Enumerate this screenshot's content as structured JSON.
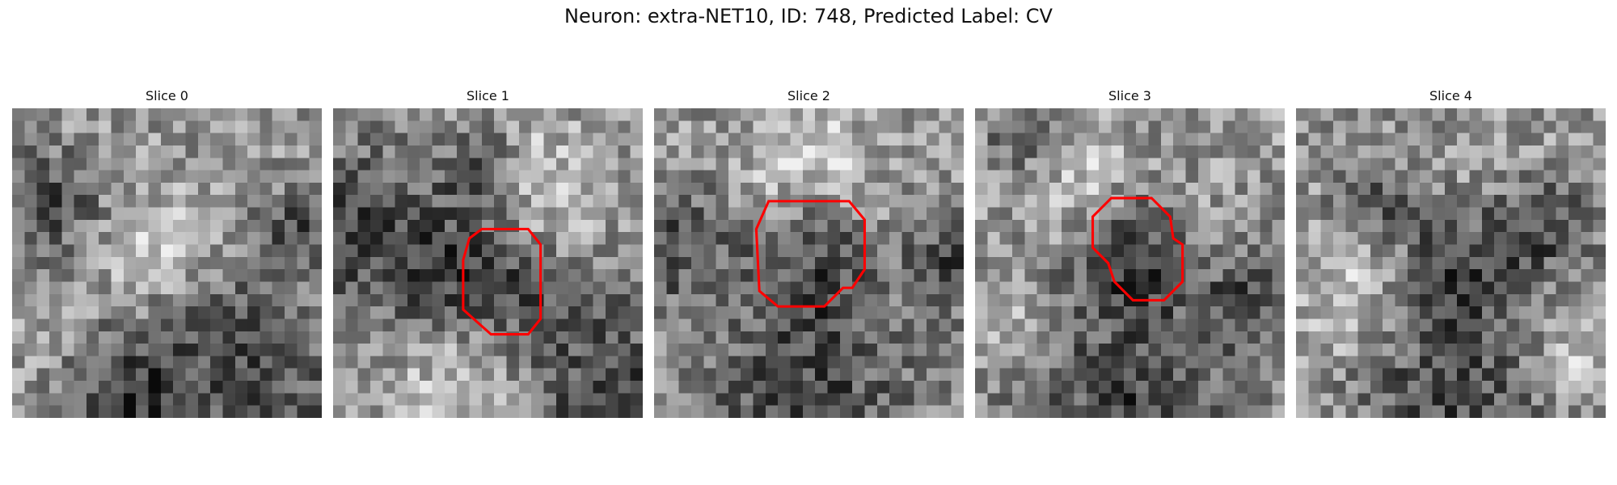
{
  "figure": {
    "title": "Neuron: extra-NET10, ID: 748, Predicted Label: CV",
    "contour_color": "#ff0000",
    "colormap": "gray"
  },
  "slices": [
    {
      "label": "Slice 0",
      "seed": 11,
      "dark_zones": [
        [
          0.75,
          0.9,
          0.55
        ],
        [
          0.35,
          0.95,
          0.3
        ],
        [
          0.1,
          0.3,
          0.25
        ],
        [
          0.9,
          0.4,
          0.2
        ]
      ],
      "bright_zones": [
        [
          0.5,
          0.45,
          0.25
        ]
      ],
      "contour": []
    },
    {
      "label": "Slice 1",
      "seed": 23,
      "dark_zones": [
        [
          0.1,
          0.4,
          0.45
        ],
        [
          0.9,
          0.9,
          0.5
        ],
        [
          0.5,
          0.2,
          0.2
        ],
        [
          0.5,
          0.55,
          0.35
        ]
      ],
      "bright_zones": [
        [
          0.65,
          0.25,
          0.3
        ],
        [
          0.45,
          0.9,
          0.3
        ]
      ],
      "contour": [
        [
          0.44,
          0.42
        ],
        [
          0.48,
          0.39
        ],
        [
          0.63,
          0.39
        ],
        [
          0.67,
          0.44
        ],
        [
          0.67,
          0.68
        ],
        [
          0.63,
          0.73
        ],
        [
          0.51,
          0.73
        ],
        [
          0.42,
          0.65
        ],
        [
          0.42,
          0.49
        ]
      ]
    },
    {
      "label": "Slice 2",
      "seed": 37,
      "dark_zones": [
        [
          0.5,
          0.95,
          0.55
        ],
        [
          0.5,
          0.5,
          0.3
        ],
        [
          0.05,
          0.45,
          0.3
        ],
        [
          0.95,
          0.5,
          0.25
        ]
      ],
      "bright_zones": [
        [
          0.45,
          0.5,
          0.12
        ],
        [
          0.5,
          0.15,
          0.3
        ]
      ],
      "contour": [
        [
          0.37,
          0.3
        ],
        [
          0.49,
          0.3
        ],
        [
          0.63,
          0.3
        ],
        [
          0.68,
          0.36
        ],
        [
          0.68,
          0.52
        ],
        [
          0.64,
          0.58
        ],
        [
          0.61,
          0.58
        ],
        [
          0.55,
          0.64
        ],
        [
          0.4,
          0.64
        ],
        [
          0.34,
          0.59
        ],
        [
          0.33,
          0.39
        ]
      ]
    },
    {
      "label": "Slice 3",
      "seed": 51,
      "dark_zones": [
        [
          0.5,
          0.95,
          0.55
        ],
        [
          0.5,
          0.5,
          0.28
        ],
        [
          0.2,
          0.1,
          0.2
        ],
        [
          0.9,
          0.6,
          0.25
        ]
      ],
      "bright_zones": [
        [
          0.3,
          0.2,
          0.25
        ],
        [
          0.1,
          0.7,
          0.2
        ]
      ],
      "contour": [
        [
          0.44,
          0.29
        ],
        [
          0.57,
          0.29
        ],
        [
          0.63,
          0.35
        ],
        [
          0.64,
          0.42
        ],
        [
          0.67,
          0.44
        ],
        [
          0.67,
          0.56
        ],
        [
          0.61,
          0.62
        ],
        [
          0.51,
          0.62
        ],
        [
          0.45,
          0.56
        ],
        [
          0.43,
          0.5
        ],
        [
          0.38,
          0.45
        ],
        [
          0.38,
          0.35
        ]
      ]
    },
    {
      "label": "Slice 4",
      "seed": 67,
      "dark_zones": [
        [
          0.5,
          0.9,
          0.45
        ],
        [
          0.25,
          0.3,
          0.2
        ],
        [
          0.8,
          0.4,
          0.25
        ],
        [
          0.5,
          0.5,
          0.3
        ]
      ],
      "bright_zones": [
        [
          0.2,
          0.6,
          0.3
        ],
        [
          0.9,
          0.8,
          0.2
        ]
      ],
      "contour": []
    }
  ]
}
